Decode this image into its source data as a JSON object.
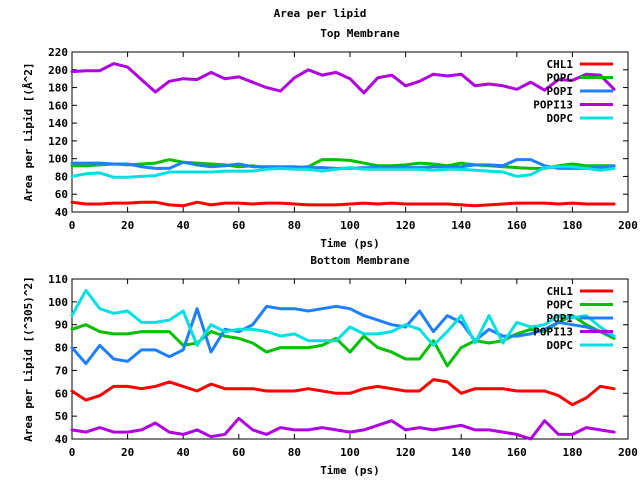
{
  "figure_title": "Area per lipid",
  "chart_data": [
    {
      "type": "line",
      "title": "Top Membrane",
      "xlabel": "Time (ps)",
      "ylabel": "Area per Lipid [(Å^2]",
      "xlim": [
        0,
        200
      ],
      "ylim": [
        40,
        220
      ],
      "xticks": [
        0,
        20,
        40,
        60,
        80,
        100,
        120,
        140,
        160,
        180,
        200
      ],
      "yticks": [
        40,
        60,
        80,
        100,
        120,
        140,
        160,
        180,
        200,
        220
      ],
      "legend_position": "top-right",
      "x": [
        0,
        5,
        10,
        15,
        20,
        25,
        30,
        35,
        40,
        45,
        50,
        55,
        60,
        65,
        70,
        75,
        80,
        85,
        90,
        95,
        100,
        105,
        110,
        115,
        120,
        125,
        130,
        135,
        140,
        145,
        150,
        155,
        160,
        165,
        170,
        175,
        180,
        185,
        190,
        195
      ],
      "series": [
        {
          "name": "CHL1",
          "color": "#ff0000",
          "values": [
            51,
            49,
            49,
            50,
            50,
            51,
            51,
            48,
            47,
            51,
            48,
            50,
            50,
            49,
            50,
            50,
            49,
            48,
            48,
            48,
            49,
            50,
            49,
            50,
            49,
            49,
            49,
            49,
            48,
            47,
            48,
            49,
            50,
            50,
            50,
            49,
            50,
            49,
            49,
            49
          ]
        },
        {
          "name": "POPC",
          "color": "#00c000",
          "values": [
            92,
            92,
            93,
            94,
            93,
            94,
            95,
            99,
            96,
            95,
            94,
            93,
            91,
            92,
            90,
            90,
            90,
            91,
            99,
            99,
            98,
            95,
            92,
            92,
            93,
            95,
            94,
            92,
            95,
            93,
            92,
            91,
            90,
            89,
            89,
            92,
            94,
            92,
            92,
            92
          ]
        },
        {
          "name": "POPI",
          "color": "#1e7fff",
          "values": [
            95,
            95,
            95,
            94,
            94,
            91,
            89,
            89,
            96,
            93,
            91,
            92,
            94,
            91,
            91,
            91,
            91,
            90,
            90,
            89,
            89,
            90,
            90,
            90,
            90,
            90,
            91,
            91,
            91,
            93,
            93,
            92,
            99,
            99,
            92,
            89,
            89,
            89,
            90,
            92
          ]
        },
        {
          "name": "POPI13",
          "color": "#b000e0",
          "values": [
            198,
            199,
            199,
            207,
            203,
            189,
            175,
            187,
            190,
            189,
            197,
            190,
            192,
            186,
            180,
            176,
            191,
            200,
            194,
            197,
            190,
            174,
            191,
            194,
            182,
            187,
            195,
            193,
            195,
            182,
            184,
            182,
            178,
            186,
            177,
            189,
            188,
            195,
            194,
            178
          ]
        },
        {
          "name": "DOPC",
          "color": "#00e0e0",
          "values": [
            80,
            83,
            84,
            79,
            79,
            80,
            81,
            85,
            85,
            85,
            85,
            86,
            86,
            86,
            88,
            89,
            88,
            88,
            86,
            88,
            90,
            88,
            88,
            88,
            88,
            88,
            87,
            88,
            88,
            87,
            86,
            85,
            80,
            82,
            90,
            91,
            91,
            89,
            87,
            89
          ]
        }
      ]
    },
    {
      "type": "line",
      "title": "Bottom Membrane",
      "xlabel": "Time (ps)",
      "ylabel": "Area per Lipid [(^305)^2]",
      "xlim": [
        0,
        200
      ],
      "ylim": [
        40,
        110
      ],
      "xticks": [
        0,
        20,
        40,
        60,
        80,
        100,
        120,
        140,
        160,
        180,
        200
      ],
      "yticks": [
        40,
        50,
        60,
        70,
        80,
        90,
        100,
        110
      ],
      "legend_position": "top-right",
      "x": [
        0,
        5,
        10,
        15,
        20,
        25,
        30,
        35,
        40,
        45,
        50,
        55,
        60,
        65,
        70,
        75,
        80,
        85,
        90,
        95,
        100,
        105,
        110,
        115,
        120,
        125,
        130,
        135,
        140,
        145,
        150,
        155,
        160,
        165,
        170,
        175,
        180,
        185,
        190,
        195
      ],
      "series": [
        {
          "name": "CHL1",
          "color": "#ff0000",
          "values": [
            61,
            57,
            59,
            63,
            63,
            62,
            63,
            65,
            63,
            61,
            64,
            62,
            62,
            62,
            61,
            61,
            61,
            62,
            61,
            60,
            60,
            62,
            63,
            62,
            61,
            61,
            66,
            65,
            60,
            62,
            62,
            62,
            61,
            61,
            61,
            59,
            55,
            58,
            63,
            62
          ]
        },
        {
          "name": "POPC",
          "color": "#00c000",
          "values": [
            88,
            90,
            87,
            86,
            86,
            87,
            87,
            87,
            81,
            82,
            87,
            85,
            84,
            82,
            78,
            80,
            80,
            80,
            81,
            84,
            78,
            85,
            80,
            78,
            75,
            75,
            83,
            72,
            80,
            83,
            82,
            83,
            86,
            88,
            87,
            91,
            94,
            90,
            87,
            84
          ]
        },
        {
          "name": "POPI",
          "color": "#1e7fff",
          "values": [
            80,
            73,
            81,
            75,
            74,
            79,
            79,
            76,
            79,
            97,
            78,
            88,
            87,
            90,
            98,
            97,
            97,
            96,
            97,
            98,
            97,
            94,
            92,
            90,
            89,
            96,
            87,
            94,
            91,
            83,
            88,
            85,
            85,
            86,
            88,
            91,
            90,
            89,
            87,
            85
          ]
        },
        {
          "name": "POPI13",
          "color": "#b000e0",
          "values": [
            44,
            43,
            45,
            43,
            43,
            44,
            47,
            43,
            42,
            44,
            41,
            42,
            49,
            44,
            42,
            45,
            44,
            44,
            45,
            44,
            43,
            44,
            46,
            48,
            44,
            45,
            44,
            45,
            46,
            44,
            44,
            43,
            42,
            40,
            48,
            42,
            42,
            45,
            44,
            43
          ]
        },
        {
          "name": "DOPC",
          "color": "#00e0e0",
          "values": [
            94,
            105,
            97,
            95,
            96,
            91,
            91,
            92,
            96,
            81,
            90,
            87,
            88,
            88,
            87,
            85,
            86,
            83,
            83,
            83,
            89,
            86,
            86,
            87,
            90,
            88,
            81,
            87,
            94,
            82,
            94,
            82,
            91,
            89,
            90,
            94,
            93,
            94,
            89,
            85
          ]
        }
      ]
    }
  ]
}
